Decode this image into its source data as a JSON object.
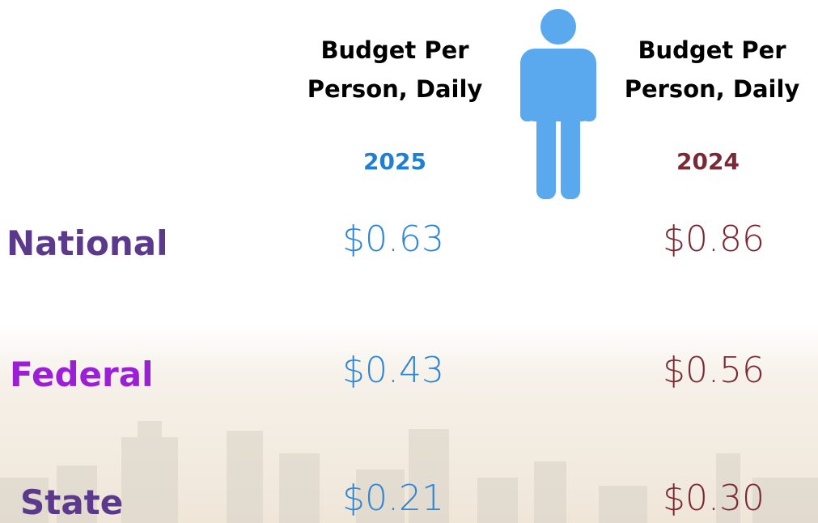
{
  "columns": [
    {
      "header": "Budget Per Person, Daily",
      "year": "2025"
    },
    {
      "header": "Budget Per Person, Daily",
      "year": "2024"
    }
  ],
  "rows": [
    {
      "label": "National",
      "values": [
        "$0.63",
        "$0.86"
      ]
    },
    {
      "label": "Federal",
      "values": [
        "$0.43",
        "$0.56"
      ]
    },
    {
      "label": "State",
      "values": [
        "$0.21",
        "$0.30"
      ]
    }
  ]
}
